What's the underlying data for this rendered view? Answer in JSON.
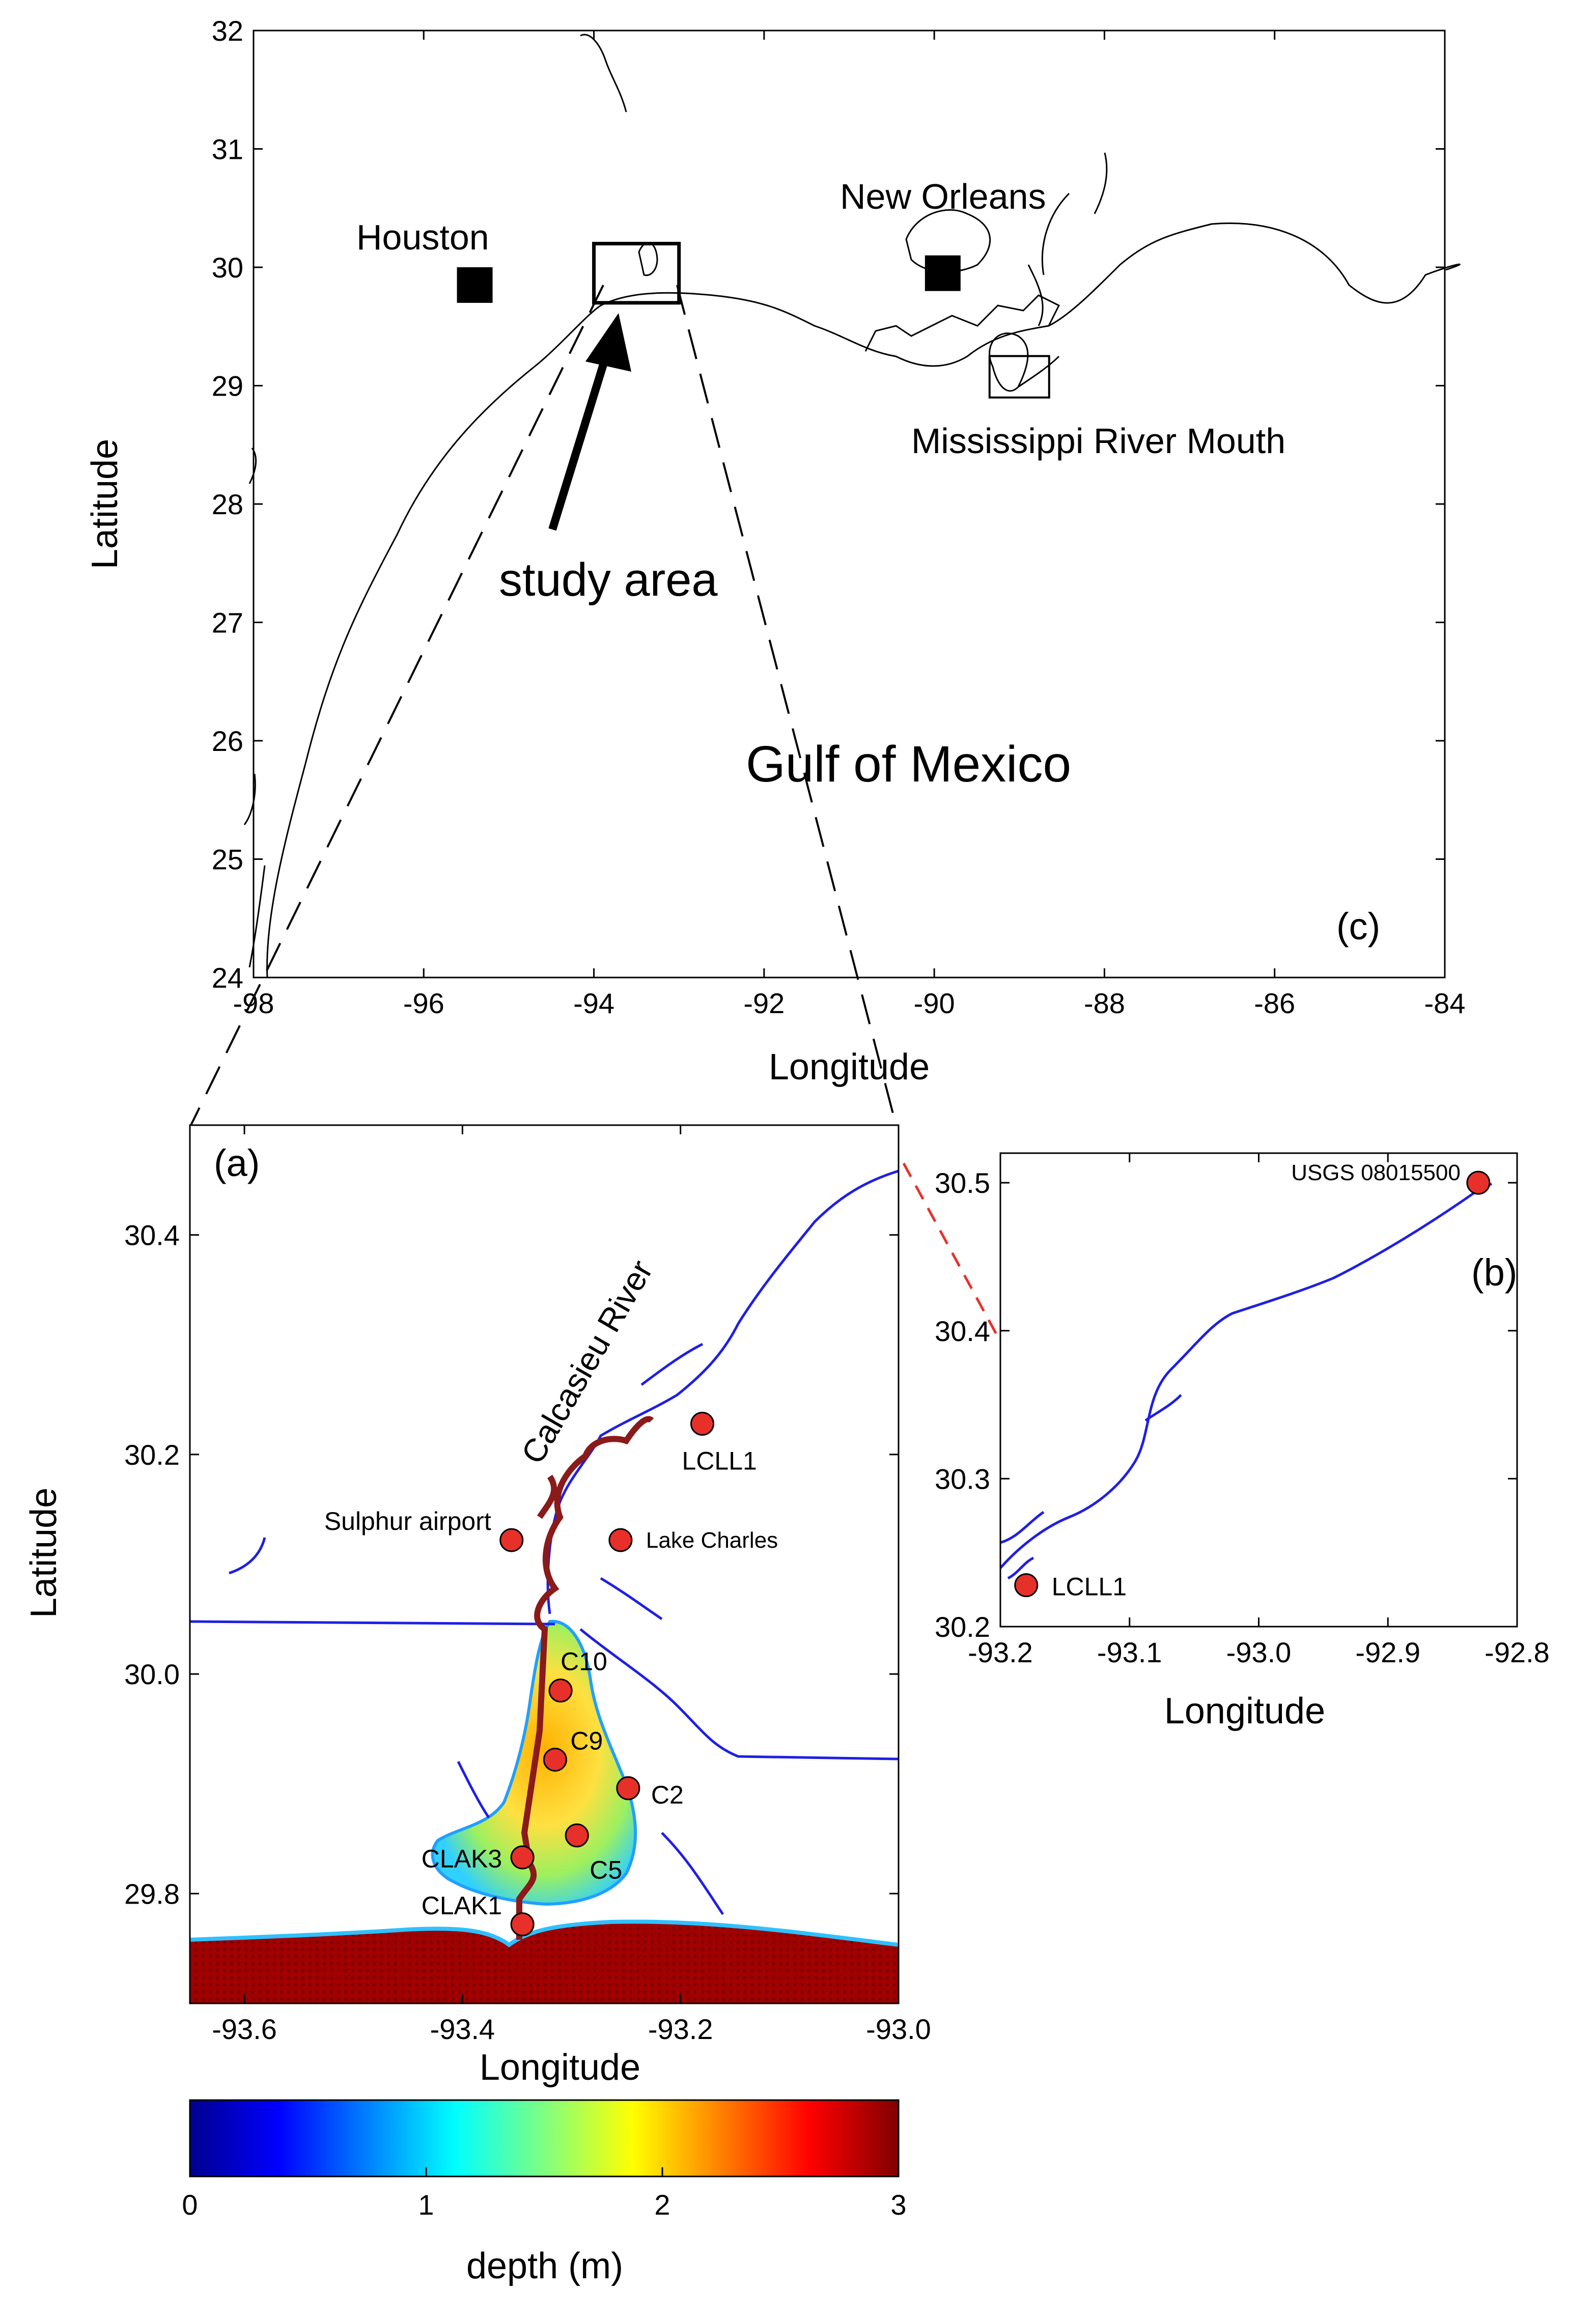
{
  "panel_c": {
    "label": "(c)",
    "xlabel": "Longitude",
    "ylabel": "Latitude",
    "xlim": [
      -98,
      -84
    ],
    "ylim": [
      24,
      32
    ],
    "xticks": [
      "-98",
      "-96",
      "-94",
      "-92",
      "-90",
      "-88",
      "-86",
      "-84"
    ],
    "yticks": [
      "24",
      "25",
      "26",
      "27",
      "28",
      "29",
      "30",
      "31",
      "32"
    ],
    "labels": {
      "houston": "Houston",
      "new_orleans": "New Orleans",
      "mississippi": "Mississippi River Mouth",
      "study_area": "study area",
      "gulf": "Gulf of Mexico"
    },
    "cities": [
      {
        "name": "Houston",
        "lon": -95.4,
        "lat": 29.85
      },
      {
        "name": "New Orleans",
        "lon": -89.9,
        "lat": 29.95
      }
    ],
    "study_box": {
      "lon": [
        -94.0,
        -93.0
      ],
      "lat": [
        29.7,
        30.2
      ]
    },
    "mississippi_box": {
      "lon": [
        -89.35,
        -88.65
      ],
      "lat": [
        28.9,
        29.25
      ]
    }
  },
  "panel_a": {
    "label": "(a)",
    "xlabel": "Longitude",
    "ylabel": "Latitude",
    "xlim": [
      -93.65,
      -93.0
    ],
    "ylim": [
      29.7,
      30.5
    ],
    "xticks": [
      "-93.6",
      "-93.4",
      "-93.2",
      "-93.0"
    ],
    "yticks": [
      "29.8",
      "30.0",
      "30.2",
      "30.4"
    ],
    "river_label": "Calcasieu River",
    "stations": [
      {
        "name": "LCLL1",
        "lon": -93.18,
        "lat": 30.228
      },
      {
        "name": "Sulphur airport",
        "lon": -93.355,
        "lat": 30.122
      },
      {
        "name": "Lake Charles",
        "lon": -93.255,
        "lat": 30.122
      },
      {
        "name": "C10",
        "lon": -93.31,
        "lat": 29.985
      },
      {
        "name": "C9",
        "lon": -93.315,
        "lat": 29.922
      },
      {
        "name": "C2",
        "lon": -93.248,
        "lat": 29.896
      },
      {
        "name": "C5",
        "lon": -93.295,
        "lat": 29.853
      },
      {
        "name": "CLAK3",
        "lon": -93.345,
        "lat": 29.833
      },
      {
        "name": "CLAK1",
        "lon": -93.345,
        "lat": 29.772
      }
    ]
  },
  "panel_b": {
    "label": "(b)",
    "xlabel": "Longitude",
    "xlim": [
      -93.2,
      -92.8
    ],
    "ylim": [
      30.2,
      30.52
    ],
    "xticks": [
      "-93.2",
      "-93.1",
      "-93.0",
      "-92.9",
      "-92.8"
    ],
    "yticks": [
      "30.2",
      "30.3",
      "30.4",
      "30.5"
    ],
    "stations": [
      {
        "name": "USGS 08015500",
        "lon": -92.83,
        "lat": 30.5
      },
      {
        "name": "LCLL1",
        "lon": -93.18,
        "lat": 30.228
      }
    ]
  },
  "colorbar": {
    "label": "depth (m)",
    "ticks": [
      "0",
      "1",
      "2",
      "3"
    ],
    "range": [
      0,
      3
    ]
  },
  "colors": {
    "marker_fill": "#e8302a",
    "river": "#1f1fe6",
    "track": "#8b1a1a"
  }
}
